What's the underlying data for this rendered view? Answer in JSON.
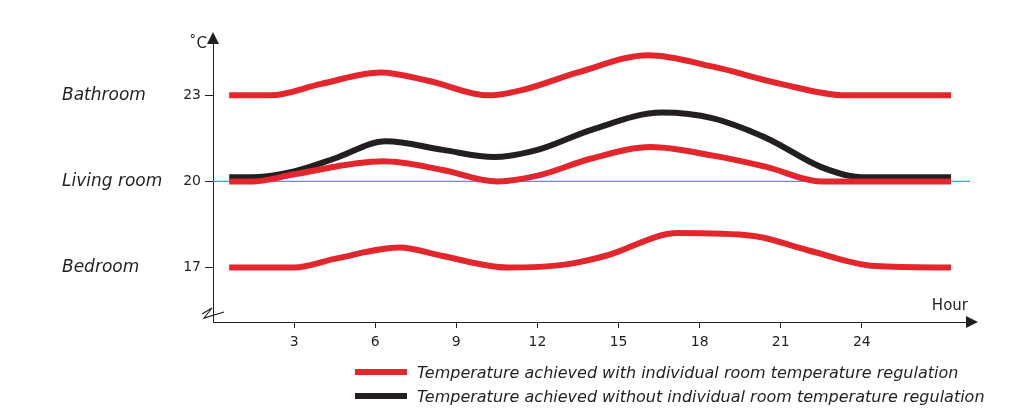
{
  "chart_data": {
    "type": "line",
    "xlabel": "Hour",
    "ylabel": "˚C",
    "xlim": [
      0,
      28
    ],
    "ylim": [
      15.1,
      25
    ],
    "xticks": [
      3,
      6,
      9,
      12,
      15,
      18,
      21,
      24
    ],
    "yticks": [
      17,
      20,
      23
    ],
    "grid": false,
    "legend": "bottom right",
    "marker": "none",
    "line_style": "solid",
    "ref_lines": [
      {
        "axis": "y",
        "value": 20,
        "color": "#29abe2"
      }
    ],
    "annotations": [
      "Bathroom",
      "Living room",
      "Bedroom"
    ],
    "series": [
      {
        "name": "Temperature achieved with individual room temperature regulation",
        "color": "#e3262b",
        "x": [
          0.6,
          2.1,
          4,
          6.2,
          8,
          10.2,
          11.5,
          13.5,
          16.1,
          18.5,
          21,
          23.4,
          27.3
        ],
        "values": [
          23,
          23,
          23.4,
          23.8,
          23.5,
          23,
          23.2,
          23.8,
          24.4,
          24,
          23.4,
          23,
          23
        ]
      },
      {
        "color": "#e3262b",
        "x": [
          0.6,
          1.5,
          3,
          6.3,
          8.5,
          10.5,
          12,
          14,
          16.2,
          18.5,
          20.5,
          22.5,
          27.3
        ],
        "values": [
          20,
          20,
          20.25,
          20.7,
          20.4,
          20,
          20.2,
          20.8,
          21.2,
          20.9,
          20.5,
          20,
          20
        ]
      },
      {
        "color": "#e3262b",
        "x": [
          0.6,
          3,
          4.5,
          6.9,
          8.5,
          10.9,
          13,
          14.5,
          17.2,
          20,
          22,
          24.5,
          27.3
        ],
        "values": [
          17,
          17,
          17.3,
          17.7,
          17.4,
          17,
          17.1,
          17.4,
          18.2,
          18.1,
          17.6,
          17.05,
          17
        ]
      },
      {
        "name": "Temperature achieved without individual room temperature regulation",
        "color": "#231f20",
        "x": [
          0.6,
          1.5,
          3,
          4.5,
          6.4,
          8.5,
          10.4,
          12,
          14,
          16.6,
          18.5,
          20.5,
          22.5,
          24,
          27.3
        ],
        "values": [
          20.15,
          20.15,
          20.35,
          20.8,
          21.4,
          21.1,
          20.85,
          21.1,
          21.8,
          22.4,
          22.2,
          21.5,
          20.5,
          20.15,
          20.15
        ]
      }
    ]
  }
}
